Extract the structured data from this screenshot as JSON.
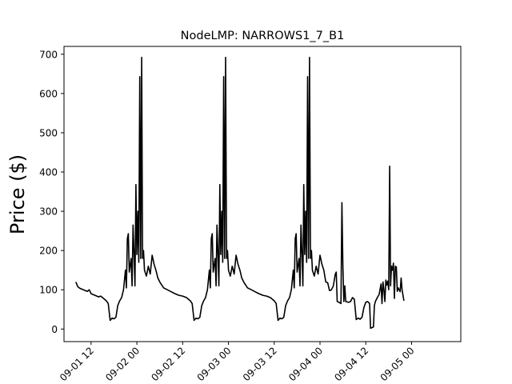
{
  "chart_data": {
    "type": "line",
    "title": "NodeLMP: NARROWS1_7_B1",
    "xlabel": "",
    "ylabel": "Price ($)",
    "xlim": [
      "2016-09-01 04:54",
      "2016-09-05 12:54"
    ],
    "ylim": [
      -32,
      720
    ],
    "yticks": [
      0,
      100,
      200,
      300,
      400,
      500,
      600,
      700
    ],
    "xticks": [
      {
        "x": "2016-09-01 12:00",
        "label": "09-01 12"
      },
      {
        "x": "2016-09-02 00:00",
        "label": "09-02 00"
      },
      {
        "x": "2016-09-02 12:00",
        "label": "09-02 12"
      },
      {
        "x": "2016-09-03 00:00",
        "label": "09-03 00"
      },
      {
        "x": "2016-09-03 12:00",
        "label": "09-03 12"
      },
      {
        "x": "2016-09-04 00:00",
        "label": "09-04 00"
      },
      {
        "x": "2016-09-04 12:00",
        "label": "09-04 12"
      },
      {
        "x": "2016-09-05 00:00",
        "label": "09-05 00"
      }
    ],
    "grid": false,
    "legend": "none",
    "line_color": "#000000",
    "series": [
      {
        "values": [
          [
            "2016-09-01 08:00",
            120
          ],
          [
            "2016-09-01 08:30",
            108
          ],
          [
            "2016-09-01 09:00",
            104
          ],
          [
            "2016-09-01 10:00",
            100
          ],
          [
            "2016-09-01 11:00",
            96
          ],
          [
            "2016-09-01 11:30",
            100
          ],
          [
            "2016-09-01 12:00",
            90
          ],
          [
            "2016-09-01 13:00",
            86
          ],
          [
            "2016-09-01 14:00",
            82
          ],
          [
            "2016-09-01 14:30",
            84
          ],
          [
            "2016-09-01 15:00",
            80
          ],
          [
            "2016-09-01 16:00",
            72
          ],
          [
            "2016-09-01 16:30",
            65
          ],
          [
            "2016-09-01 17:00",
            22
          ],
          [
            "2016-09-01 17:30",
            28
          ],
          [
            "2016-09-01 18:00",
            26
          ],
          [
            "2016-09-01 18:30",
            30
          ],
          [
            "2016-09-01 19:00",
            60
          ],
          [
            "2016-09-01 19:30",
            72
          ],
          [
            "2016-09-01 20:00",
            80
          ],
          [
            "2016-09-01 20:30",
            100
          ],
          [
            "2016-09-01 21:00",
            150
          ],
          [
            "2016-09-01 21:15",
            105
          ],
          [
            "2016-09-01 21:30",
            230
          ],
          [
            "2016-09-01 21:45",
            243
          ],
          [
            "2016-09-01 22:00",
            145
          ],
          [
            "2016-09-01 22:30",
            180
          ],
          [
            "2016-09-01 22:45",
            110
          ],
          [
            "2016-09-01 23:00",
            265
          ],
          [
            "2016-09-01 23:15",
            195
          ],
          [
            "2016-09-01 23:30",
            110
          ],
          [
            "2016-09-01 23:45",
            368
          ],
          [
            "2016-09-02 00:00",
            190
          ],
          [
            "2016-09-02 00:15",
            300
          ],
          [
            "2016-09-02 00:30",
            170
          ],
          [
            "2016-09-02 00:45",
            643
          ],
          [
            "2016-09-02 01:00",
            180
          ],
          [
            "2016-09-02 01:15",
            692
          ],
          [
            "2016-09-02 01:30",
            180
          ],
          [
            "2016-09-02 01:45",
            200
          ],
          [
            "2016-09-02 02:00",
            150
          ],
          [
            "2016-09-02 02:30",
            135
          ],
          [
            "2016-09-02 03:00",
            160
          ],
          [
            "2016-09-02 03:30",
            140
          ],
          [
            "2016-09-02 04:00",
            188
          ],
          [
            "2016-09-02 04:30",
            165
          ],
          [
            "2016-09-02 05:00",
            150
          ],
          [
            "2016-09-02 05:30",
            130
          ],
          [
            "2016-09-02 06:00",
            120
          ],
          [
            "2016-09-02 07:00",
            105
          ],
          [
            "2016-09-02 08:00",
            100
          ],
          [
            "2016-09-02 09:00",
            95
          ],
          [
            "2016-09-02 10:00",
            90
          ],
          [
            "2016-09-02 11:00",
            86
          ],
          [
            "2016-09-02 12:00",
            84
          ],
          [
            "2016-09-02 13:00",
            80
          ],
          [
            "2016-09-02 14:00",
            72
          ],
          [
            "2016-09-02 14:30",
            65
          ],
          [
            "2016-09-02 15:00",
            22
          ],
          [
            "2016-09-02 15:30",
            28
          ],
          [
            "2016-09-02 16:00",
            26
          ],
          [
            "2016-09-02 16:30",
            30
          ],
          [
            "2016-09-02 17:00",
            60
          ],
          [
            "2016-09-02 17:30",
            72
          ],
          [
            "2016-09-02 18:00",
            80
          ],
          [
            "2016-09-02 18:30",
            100
          ],
          [
            "2016-09-02 19:00",
            150
          ],
          [
            "2016-09-02 19:15",
            105
          ],
          [
            "2016-09-02 19:30",
            230
          ],
          [
            "2016-09-02 19:45",
            243
          ],
          [
            "2016-09-02 20:00",
            145
          ],
          [
            "2016-09-02 20:30",
            180
          ],
          [
            "2016-09-02 20:45",
            110
          ],
          [
            "2016-09-02 21:00",
            265
          ],
          [
            "2016-09-02 21:15",
            195
          ],
          [
            "2016-09-02 21:30",
            110
          ],
          [
            "2016-09-02 21:45",
            368
          ],
          [
            "2016-09-02 22:00",
            190
          ],
          [
            "2016-09-02 22:15",
            300
          ],
          [
            "2016-09-02 22:30",
            170
          ],
          [
            "2016-09-02 22:45",
            643
          ],
          [
            "2016-09-02 23:00",
            180
          ],
          [
            "2016-09-02 23:15",
            692
          ],
          [
            "2016-09-02 23:30",
            180
          ],
          [
            "2016-09-02 23:45",
            200
          ],
          [
            "2016-09-03 00:00",
            150
          ],
          [
            "2016-09-03 00:30",
            135
          ],
          [
            "2016-09-03 01:00",
            160
          ],
          [
            "2016-09-03 01:30",
            140
          ],
          [
            "2016-09-03 02:00",
            188
          ],
          [
            "2016-09-03 02:30",
            165
          ],
          [
            "2016-09-03 03:00",
            150
          ],
          [
            "2016-09-03 03:30",
            130
          ],
          [
            "2016-09-03 04:00",
            120
          ],
          [
            "2016-09-03 05:00",
            105
          ],
          [
            "2016-09-03 06:00",
            100
          ],
          [
            "2016-09-03 07:00",
            95
          ],
          [
            "2016-09-03 08:00",
            90
          ],
          [
            "2016-09-03 09:00",
            86
          ],
          [
            "2016-09-03 10:00",
            84
          ],
          [
            "2016-09-03 11:00",
            80
          ],
          [
            "2016-09-03 12:00",
            72
          ],
          [
            "2016-09-03 12:30",
            65
          ],
          [
            "2016-09-03 13:00",
            22
          ],
          [
            "2016-09-03 13:30",
            28
          ],
          [
            "2016-09-03 14:00",
            26
          ],
          [
            "2016-09-03 14:30",
            30
          ],
          [
            "2016-09-03 15:00",
            60
          ],
          [
            "2016-09-03 15:30",
            72
          ],
          [
            "2016-09-03 16:00",
            80
          ],
          [
            "2016-09-03 16:30",
            100
          ],
          [
            "2016-09-03 17:00",
            150
          ],
          [
            "2016-09-03 17:15",
            105
          ],
          [
            "2016-09-03 17:30",
            230
          ],
          [
            "2016-09-03 17:45",
            243
          ],
          [
            "2016-09-03 18:00",
            145
          ],
          [
            "2016-09-03 18:30",
            180
          ],
          [
            "2016-09-03 18:45",
            110
          ],
          [
            "2016-09-03 19:00",
            265
          ],
          [
            "2016-09-03 19:15",
            195
          ],
          [
            "2016-09-03 19:30",
            110
          ],
          [
            "2016-09-03 19:45",
            368
          ],
          [
            "2016-09-03 20:00",
            190
          ],
          [
            "2016-09-03 20:15",
            300
          ],
          [
            "2016-09-03 20:30",
            170
          ],
          [
            "2016-09-03 20:45",
            643
          ],
          [
            "2016-09-03 21:00",
            180
          ],
          [
            "2016-09-03 21:15",
            692
          ],
          [
            "2016-09-03 21:30",
            180
          ],
          [
            "2016-09-03 21:45",
            200
          ],
          [
            "2016-09-03 22:00",
            150
          ],
          [
            "2016-09-03 22:30",
            135
          ],
          [
            "2016-09-03 23:00",
            160
          ],
          [
            "2016-09-03 23:30",
            140
          ],
          [
            "2016-09-04 00:00",
            188
          ],
          [
            "2016-09-04 00:30",
            165
          ],
          [
            "2016-09-04 01:00",
            150
          ],
          [
            "2016-09-04 01:30",
            120
          ],
          [
            "2016-09-04 02:00",
            118
          ],
          [
            "2016-09-04 02:30",
            98
          ],
          [
            "2016-09-04 03:00",
            100
          ],
          [
            "2016-09-04 03:30",
            110
          ],
          [
            "2016-09-04 04:00",
            140
          ],
          [
            "2016-09-04 04:15",
            145
          ],
          [
            "2016-09-04 04:30",
            70
          ],
          [
            "2016-09-04 05:00",
            68
          ],
          [
            "2016-09-04 05:30",
            65
          ],
          [
            "2016-09-04 05:45",
            322
          ],
          [
            "2016-09-04 06:00",
            160
          ],
          [
            "2016-09-04 06:15",
            70
          ],
          [
            "2016-09-04 06:30",
            110
          ],
          [
            "2016-09-04 06:45",
            70
          ],
          [
            "2016-09-04 07:30",
            68
          ],
          [
            "2016-09-04 08:00",
            70
          ],
          [
            "2016-09-04 08:30",
            80
          ],
          [
            "2016-09-04 09:00",
            76
          ],
          [
            "2016-09-04 09:30",
            24
          ],
          [
            "2016-09-04 10:00",
            28
          ],
          [
            "2016-09-04 10:30",
            25
          ],
          [
            "2016-09-04 11:00",
            30
          ],
          [
            "2016-09-04 11:30",
            55
          ],
          [
            "2016-09-04 12:00",
            68
          ],
          [
            "2016-09-04 12:30",
            70
          ],
          [
            "2016-09-04 13:00",
            65
          ],
          [
            "2016-09-04 13:15",
            2
          ],
          [
            "2016-09-04 14:00",
            5
          ],
          [
            "2016-09-04 14:15",
            60
          ],
          [
            "2016-09-04 14:30",
            70
          ],
          [
            "2016-09-04 15:00",
            80
          ],
          [
            "2016-09-04 15:30",
            88
          ],
          [
            "2016-09-04 16:00",
            115
          ],
          [
            "2016-09-04 16:15",
            65
          ],
          [
            "2016-09-04 16:30",
            120
          ],
          [
            "2016-09-04 16:45",
            100
          ],
          [
            "2016-09-04 17:00",
            70
          ],
          [
            "2016-09-04 17:15",
            125
          ],
          [
            "2016-09-04 17:30",
            112
          ],
          [
            "2016-09-04 17:45",
            122
          ],
          [
            "2016-09-04 18:00",
            100
          ],
          [
            "2016-09-04 18:15",
            415
          ],
          [
            "2016-09-04 18:30",
            110
          ],
          [
            "2016-09-04 18:45",
            160
          ],
          [
            "2016-09-04 19:00",
            150
          ],
          [
            "2016-09-04 19:15",
            168
          ],
          [
            "2016-09-04 19:30",
            78
          ],
          [
            "2016-09-04 19:45",
            160
          ],
          [
            "2016-09-04 20:00",
            158
          ],
          [
            "2016-09-04 20:15",
            96
          ],
          [
            "2016-09-04 20:30",
            105
          ],
          [
            "2016-09-04 21:00",
            95
          ],
          [
            "2016-09-04 21:15",
            130
          ],
          [
            "2016-09-04 21:30",
            100
          ],
          [
            "2016-09-04 22:00",
            72
          ]
        ]
      }
    ]
  }
}
